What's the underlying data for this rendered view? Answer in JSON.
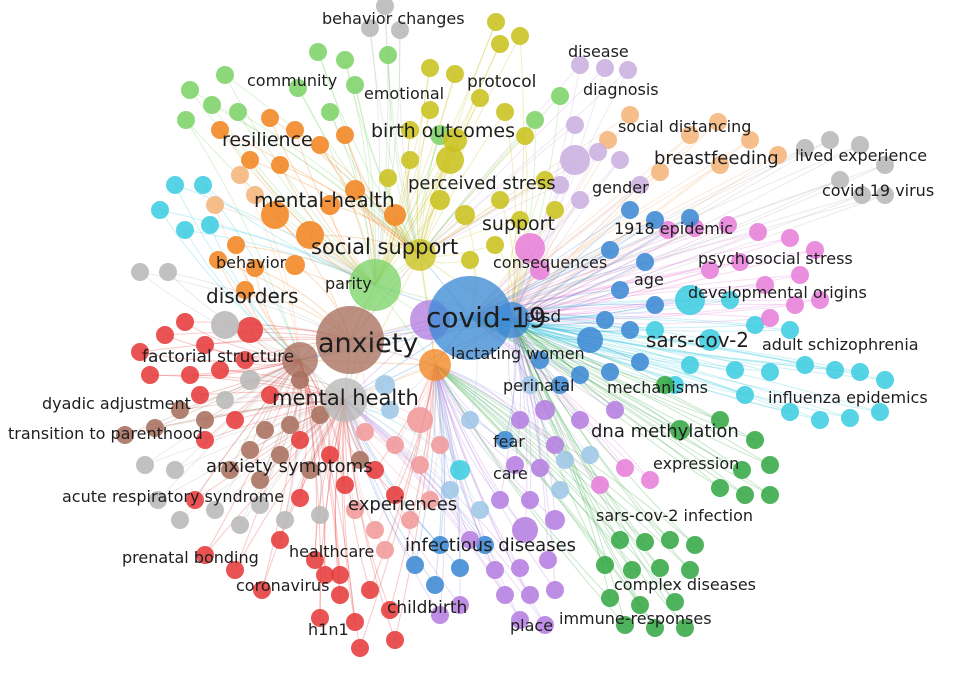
{
  "clusters": {
    "red": "#e63b3b",
    "brown": "#a8705f",
    "orange": "#f28522",
    "yellow": "#c9c21e",
    "lightgreen": "#7ed36a",
    "green": "#35a846",
    "blue": "#3d8ad4",
    "cyan": "#3fcde0",
    "pink": "#e77fd9",
    "purple": "#b57ee0",
    "lavender": "#c9b0e0",
    "peach": "#f4b57a",
    "gray": "#b8b8b8",
    "lightblue": "#9ec7e6",
    "salmon": "#f09a9a"
  },
  "terms": {
    "behavior_changes": "behavior changes",
    "disease": "disease",
    "community": "community",
    "protocol": "protocol",
    "emotional": "emotional",
    "diagnosis": "diagnosis",
    "social_distancing": "social distancing",
    "resilience": "resilience",
    "birth_outcomes": "birth outcomes",
    "breastfeeding": "breastfeeding",
    "lived_experience": "lived experience",
    "perceived_stress": "perceived stress",
    "gender": "gender",
    "covid_19_virus": "covid 19 virus",
    "mental_health_hyphen": "mental-health",
    "support": "support",
    "epidemic_1918": "1918 epidemic",
    "social_support": "social support",
    "psychosocial_stress": "psychosocial stress",
    "behavior": "behavior",
    "consequences": "consequences",
    "age": "age",
    "parity": "parity",
    "disorders": "disorders",
    "developmental_origins": "developmental origins",
    "covid_19": "covid-19",
    "ptsd": "ptsd",
    "anxiety": "anxiety",
    "sars_cov_2": "sars-cov-2",
    "adult_schizophrenia": "adult schizophrenia",
    "factorial_structure": "factorial structure",
    "lactating_women": "lactating women",
    "perinatal": "perinatal",
    "mechanisms": "mechanisms",
    "mental_health": "mental health",
    "influenza_epidemics": "influenza epidemics",
    "dyadic_adjustment": "dyadic adjustment",
    "dna_methylation": "dna methylation",
    "transition_to_parenthood": "transition to parenthood",
    "fear": "fear",
    "expression": "expression",
    "anxiety_symptoms": "anxiety symptoms",
    "care": "care",
    "acute_respiratory_syndrome": "acute respiratory syndrome",
    "experiences": "experiences",
    "sars_cov_2_infection": "sars-cov-2 infection",
    "infectious_diseases": "infectious diseases",
    "prenatal_bonding": "prenatal bonding",
    "healthcare": "healthcare",
    "complex_diseases": "complex diseases",
    "coronavirus": "coronavirus",
    "childbirth": "childbirth",
    "h1n1": "h1n1",
    "place": "place",
    "immune_responses": "immune-responses"
  }
}
